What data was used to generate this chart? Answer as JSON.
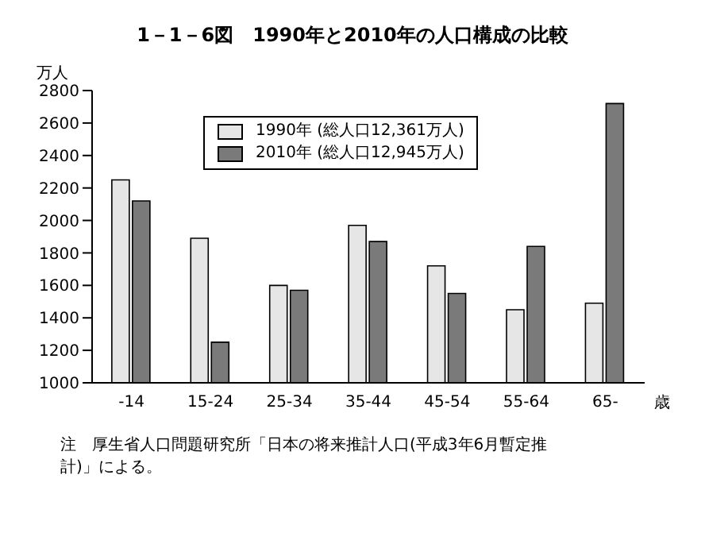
{
  "chart_data": {
    "type": "bar",
    "title": "1－1－6図　1990年と2010年の人口構成の比較",
    "ylabel": "万人",
    "xlabel": "歳",
    "categories": [
      "-14",
      "15-24",
      "25-34",
      "35-44",
      "45-54",
      "55-64",
      "65-"
    ],
    "series": [
      {
        "name": "1990年 (総人口12,361万人)",
        "color": "#e6e6e6",
        "values": [
          2250,
          1890,
          1600,
          1970,
          1720,
          1450,
          1490
        ]
      },
      {
        "name": "2010年 (総人口12,945万人)",
        "color": "#7a7a7a",
        "values": [
          2120,
          1250,
          1570,
          1870,
          1550,
          1840,
          2720
        ]
      }
    ],
    "ylim": [
      1000,
      2800
    ],
    "yticks": [
      1000,
      1200,
      1400,
      1600,
      1800,
      2000,
      2200,
      2400,
      2600,
      2800
    ],
    "grid": false,
    "legend": "top",
    "annotations": [
      "注　厚生省人口問題研究所「日本の将来推計人口(平成3年6月暫定推計)」による。"
    ]
  }
}
